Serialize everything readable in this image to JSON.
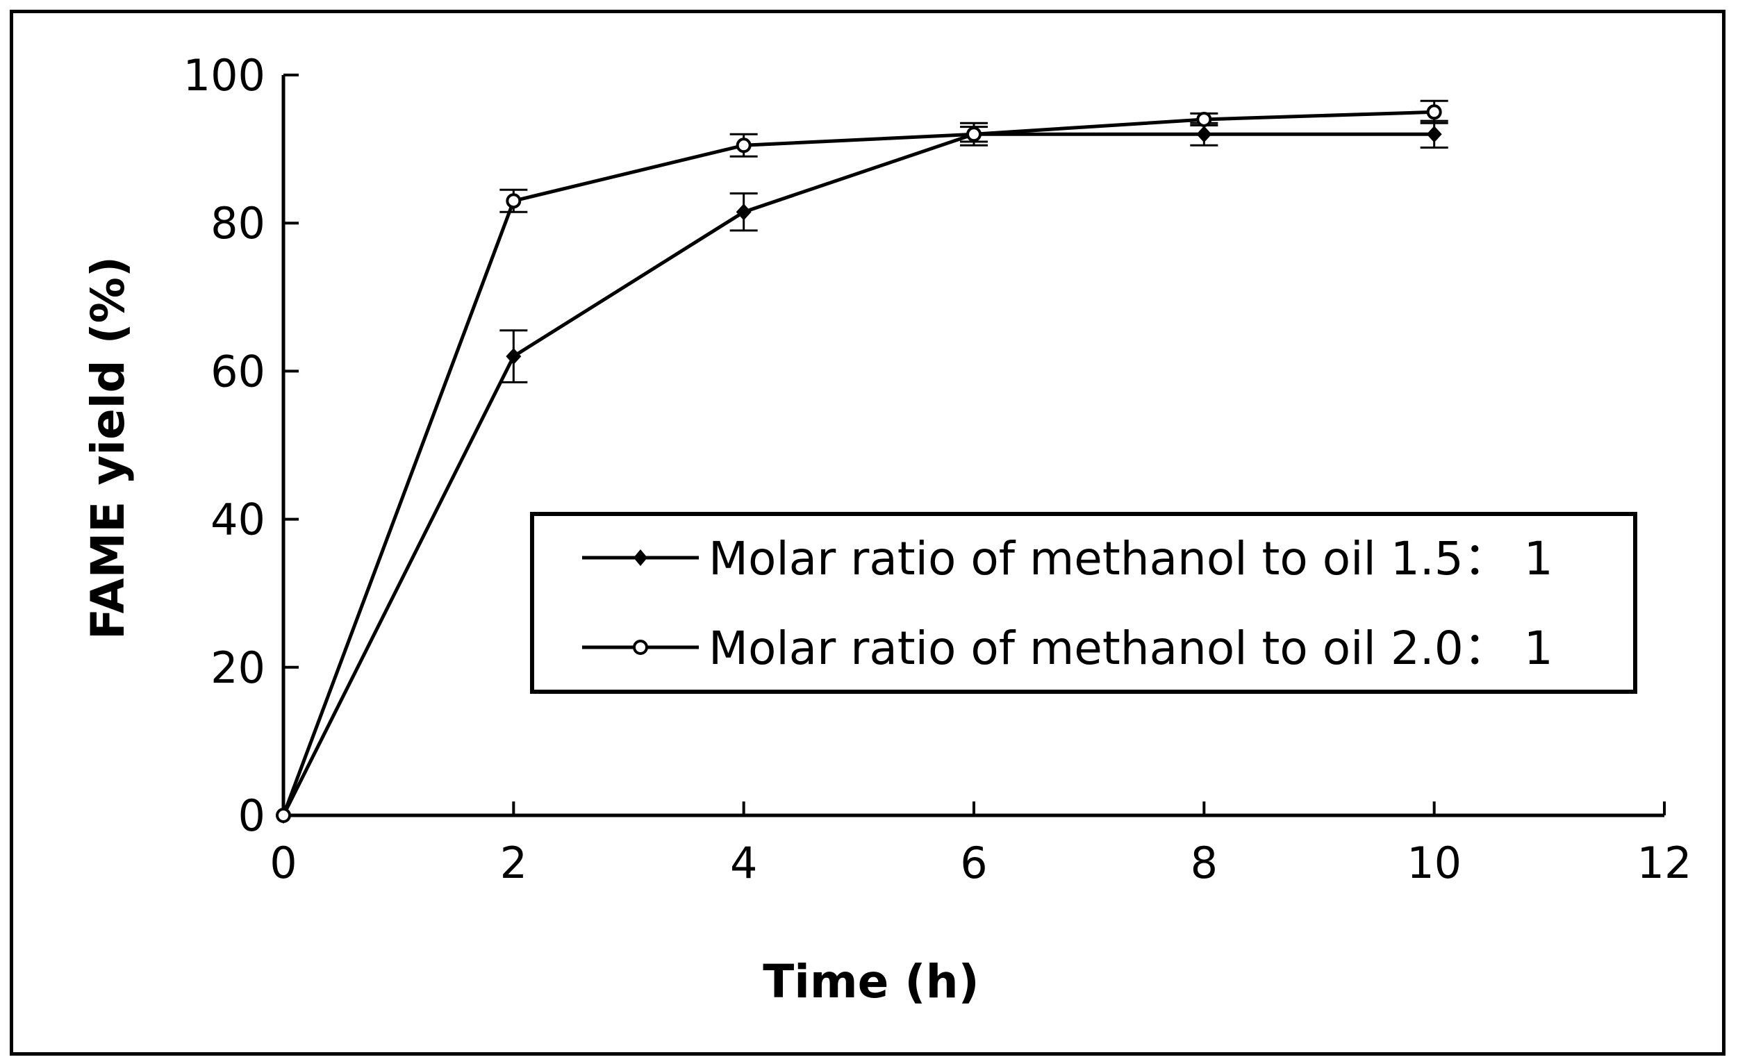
{
  "chart_data": {
    "type": "line",
    "title": "",
    "xlabel": "Time (h)",
    "ylabel": "FAME yield (%)",
    "xlim": [
      0,
      12
    ],
    "ylim": [
      0,
      100
    ],
    "x_ticks": [
      0,
      2,
      4,
      6,
      8,
      10,
      12
    ],
    "y_ticks": [
      0,
      20,
      40,
      60,
      80,
      100
    ],
    "grid": false,
    "legend_position": "center-right",
    "series": [
      {
        "name": "Molar ratio of methanol to oil 1.5： 1",
        "marker": "filled-diamond",
        "x": [
          0,
          2,
          4,
          6,
          8,
          10
        ],
        "values": [
          0,
          62,
          81.5,
          92,
          92,
          92
        ],
        "error": [
          0,
          3.5,
          2.5,
          1.5,
          1.5,
          1.8
        ]
      },
      {
        "name": "Molar ratio of methanol to oil 2.0： 1",
        "marker": "open-circle",
        "x": [
          0,
          2,
          4,
          6,
          8,
          10
        ],
        "values": [
          0,
          83,
          90.5,
          92,
          94,
          95
        ],
        "error": [
          0,
          1.5,
          1.5,
          1.0,
          0.8,
          1.5
        ]
      }
    ]
  },
  "colors": {
    "line": "#000000",
    "background": "#ffffff"
  }
}
